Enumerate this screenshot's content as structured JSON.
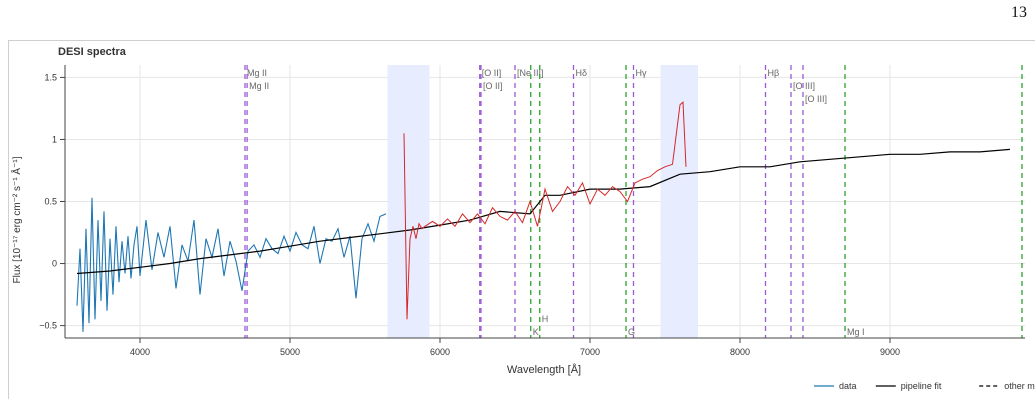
{
  "page": {
    "number": "13"
  },
  "colors": {
    "data": "#1f77b4",
    "fit": "#000000",
    "model": "#d62728",
    "purple_line": "#9b59d6",
    "green_line": "#2ca02c",
    "band": "#e8ecff",
    "grid": "#e6e6e6"
  },
  "chart_data": {
    "type": "line",
    "title": "DESI spectra",
    "xlabel": "Wavelength [Å]",
    "ylabel": "Flux [10⁻¹⁷ erg cm⁻² s⁻¹ Å⁻¹]",
    "xlim": [
      3500,
      9900
    ],
    "ylim": [
      -0.6,
      1.6
    ],
    "xticks": [
      4000,
      5000,
      6000,
      7000,
      8000,
      9000
    ],
    "yticks": [
      -0.5,
      0,
      0.5,
      1,
      1.5
    ],
    "ytick_labels": [
      "−0.5",
      "0",
      "0.5",
      "1",
      "1.5"
    ],
    "grid": true,
    "legend_position": "bottom-right",
    "legend": [
      {
        "label": "data",
        "style": "solid",
        "color": "#1f77b4"
      },
      {
        "label": "pipeline fit",
        "style": "solid",
        "color": "#000000"
      },
      {
        "label": "other model",
        "style": "dashed",
        "color": "#000000"
      }
    ],
    "bands": [
      {
        "x0": 5650,
        "x1": 5930
      },
      {
        "x0": 7470,
        "x1": 7720
      }
    ],
    "emission_lines": [
      {
        "x": 4700,
        "label": "Mg II",
        "row": 0
      },
      {
        "x": 4714,
        "label": "Mg II",
        "row": 1
      },
      {
        "x": 6265,
        "label": "[O II]",
        "row": 0
      },
      {
        "x": 6273,
        "label": "[O II]",
        "row": 1
      },
      {
        "x": 6500,
        "label": "[Ne III]",
        "row": 0
      },
      {
        "x": 6890,
        "label": "Hδ",
        "row": 0
      },
      {
        "x": 7290,
        "label": "Hγ",
        "row": 0
      },
      {
        "x": 8170,
        "label": "Hβ",
        "row": 0
      },
      {
        "x": 8340,
        "label": "[O III]",
        "row": 1
      },
      {
        "x": 8420,
        "label": "[O III]",
        "row": 2
      }
    ],
    "absorption_lines": [
      {
        "x": 6605,
        "label": "K"
      },
      {
        "x": 6665,
        "label": "H"
      },
      {
        "x": 7240,
        "label": "G"
      },
      {
        "x": 8700,
        "label": "Mg I"
      },
      {
        "x": 9880,
        "label": ""
      }
    ],
    "series": [
      {
        "name": "data",
        "x": [
          3580,
          3600,
          3620,
          3640,
          3660,
          3680,
          3700,
          3720,
          3740,
          3760,
          3780,
          3800,
          3820,
          3840,
          3860,
          3880,
          3900,
          3920,
          3940,
          3960,
          3980,
          4000,
          4040,
          4080,
          4120,
          4160,
          4200,
          4240,
          4280,
          4320,
          4360,
          4400,
          4440,
          4480,
          4520,
          4560,
          4600,
          4640,
          4680,
          4720,
          4760,
          4800,
          4840,
          4880,
          4920,
          4960,
          5000,
          5040,
          5080,
          5120,
          5160,
          5200,
          5240,
          5280,
          5320,
          5360,
          5400,
          5440,
          5480,
          5520,
          5560,
          5600,
          5640
        ],
        "y": [
          -0.34,
          0.12,
          -0.55,
          0.28,
          -0.48,
          0.53,
          -0.45,
          0.35,
          -0.3,
          0.42,
          -0.38,
          0.2,
          -0.25,
          0.3,
          -0.15,
          0.18,
          -0.08,
          0.22,
          -0.12,
          0.15,
          0.3,
          -0.1,
          0.35,
          -0.05,
          0.25,
          0.05,
          0.3,
          -0.2,
          0.15,
          0.02,
          0.35,
          -0.25,
          0.2,
          0.05,
          0.28,
          -0.1,
          0.18,
          0.02,
          -0.22,
          0.1,
          0.15,
          0.05,
          0.2,
          0.12,
          0.08,
          0.22,
          0.1,
          0.25,
          0.15,
          0.12,
          0.3,
          0.0,
          0.2,
          0.18,
          0.28,
          0.05,
          0.22,
          -0.28,
          0.2,
          0.32,
          0.18,
          0.38,
          0.4
        ]
      },
      {
        "name": "pipeline fit",
        "x": [
          3580,
          3800,
          4000,
          4200,
          4400,
          4600,
          4800,
          5000,
          5200,
          5400,
          5600,
          5800,
          6000,
          6200,
          6400,
          6600,
          6700,
          6800,
          7000,
          7200,
          7400,
          7600,
          7800,
          8000,
          8200,
          8400,
          8600,
          8800,
          9000,
          9200,
          9400,
          9600,
          9800
        ],
        "y": [
          -0.08,
          -0.06,
          -0.03,
          0.0,
          0.04,
          0.07,
          0.1,
          0.14,
          0.18,
          0.21,
          0.24,
          0.27,
          0.31,
          0.35,
          0.42,
          0.4,
          0.55,
          0.55,
          0.6,
          0.6,
          0.62,
          0.72,
          0.74,
          0.78,
          0.78,
          0.82,
          0.84,
          0.86,
          0.88,
          0.88,
          0.9,
          0.9,
          0.92
        ]
      },
      {
        "name": "other model",
        "x": [
          5760,
          5780,
          5800,
          5820,
          5840,
          5860,
          5880,
          5900,
          5950,
          6000,
          6050,
          6100,
          6150,
          6200,
          6250,
          6300,
          6350,
          6400,
          6450,
          6500,
          6550,
          6600,
          6650,
          6700,
          6750,
          6800,
          6850,
          6900,
          6950,
          7000,
          7050,
          7100,
          7150,
          7200,
          7250,
          7300,
          7350,
          7400,
          7450,
          7500,
          7550,
          7600,
          7620,
          7640
        ],
        "y": [
          1.05,
          -0.45,
          0.2,
          0.3,
          0.2,
          0.32,
          0.28,
          0.3,
          0.34,
          0.3,
          0.36,
          0.3,
          0.4,
          0.33,
          0.4,
          0.32,
          0.45,
          0.38,
          0.35,
          0.42,
          0.33,
          0.5,
          0.3,
          0.6,
          0.42,
          0.5,
          0.62,
          0.55,
          0.65,
          0.48,
          0.6,
          0.55,
          0.62,
          0.58,
          0.5,
          0.65,
          0.68,
          0.7,
          0.75,
          0.78,
          0.8,
          1.28,
          1.3,
          0.78
        ]
      }
    ]
  }
}
